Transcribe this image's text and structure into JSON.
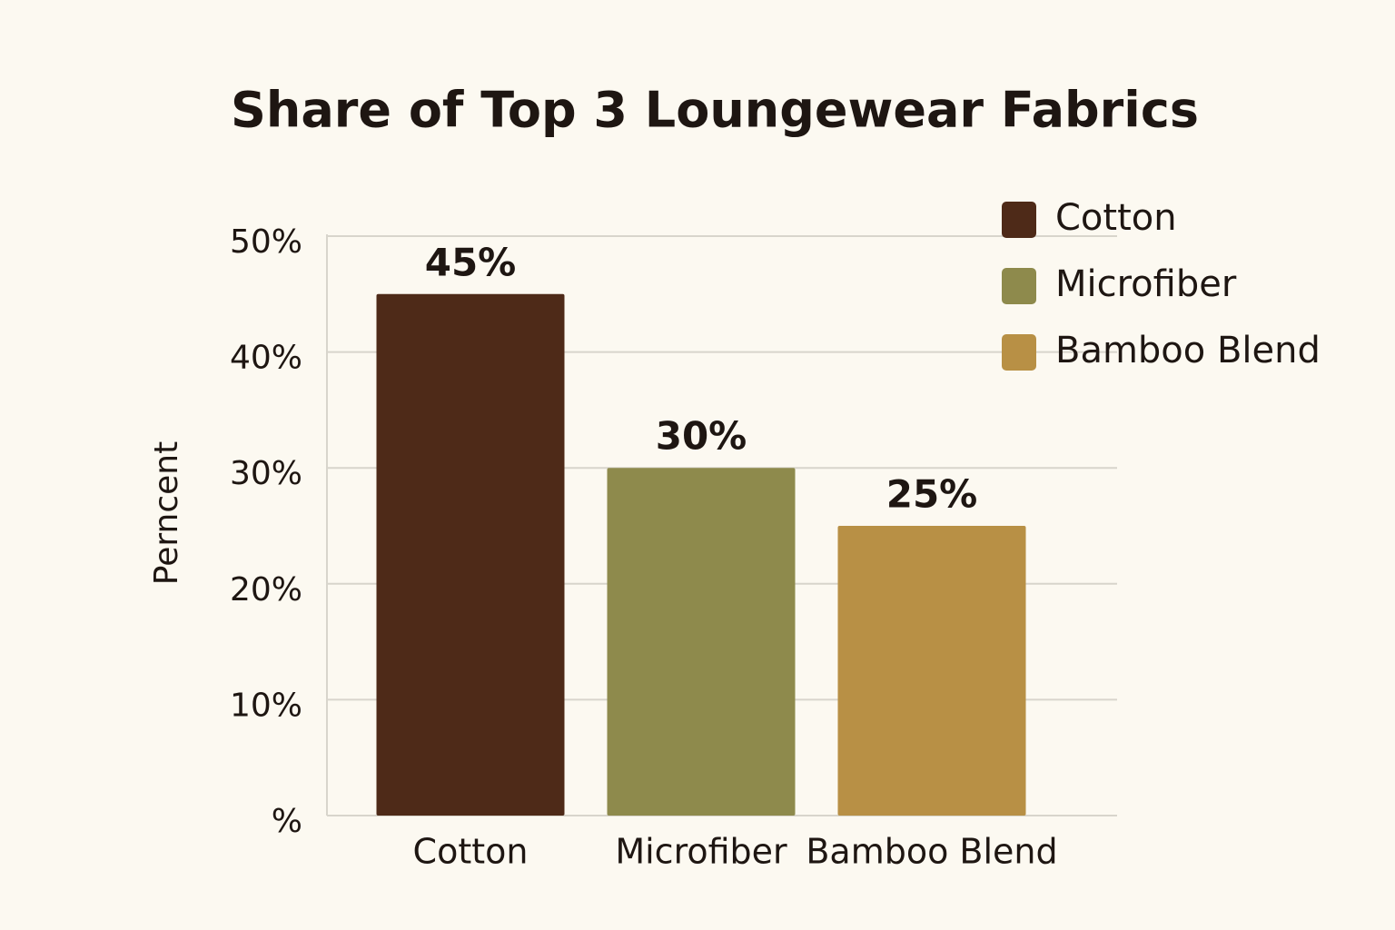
{
  "chart_data": {
    "type": "bar",
    "title": "Share of Top 3 Loungewear Fabrics",
    "y_label": "Perncent",
    "categories": [
      "Cotton",
      "Microfiber",
      "Bamboo Blend"
    ],
    "values": [
      45,
      30,
      25
    ],
    "value_labels": [
      "45%",
      "30%",
      "25%"
    ],
    "colors": [
      "#4e2a18",
      "#8e8a4c",
      "#b89045"
    ],
    "ylim": [
      0,
      50
    ],
    "yticks": [
      {
        "value": 0,
        "label": "%"
      },
      {
        "value": 10,
        "label": "10%"
      },
      {
        "value": 20,
        "label": "20%"
      },
      {
        "value": 30,
        "label": "30%"
      },
      {
        "value": 40,
        "label": "40%"
      },
      {
        "value": 50,
        "label": "50%"
      }
    ],
    "grid": true,
    "legend": "top-right"
  }
}
